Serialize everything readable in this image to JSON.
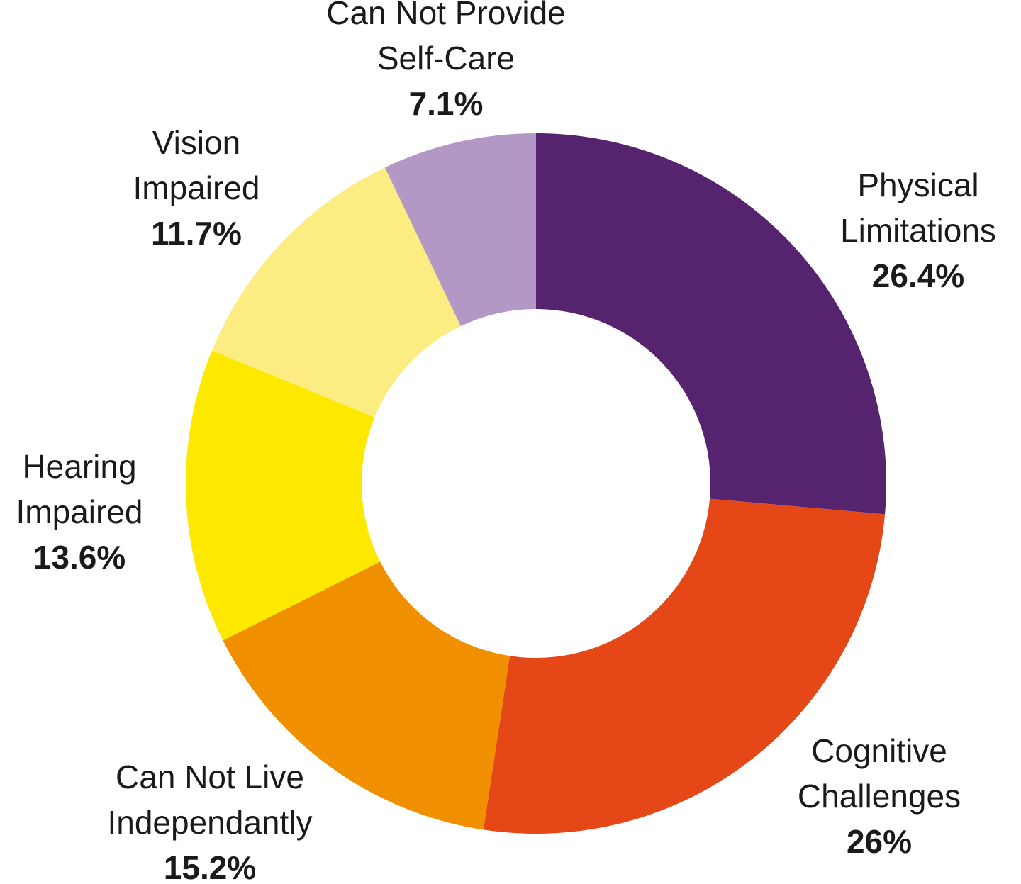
{
  "chart_data": {
    "type": "donut",
    "categories": [
      [
        "Physical",
        "Limitations"
      ],
      [
        "Cognitive",
        "Challenges"
      ],
      [
        "Can Not Live",
        "Independantly"
      ],
      [
        "Hearing",
        "Impaired"
      ],
      [
        "Vision",
        "Impaired"
      ],
      [
        "Can Not Provide",
        "Self-Care"
      ]
    ],
    "values": [
      26.4,
      26,
      15.2,
      13.6,
      11.7,
      7.1
    ],
    "value_labels": [
      "26.4%",
      "26%",
      "15.2%",
      "13.6%",
      "11.7%",
      "7.1%"
    ],
    "colors": [
      "#56236f",
      "#e54717",
      "#f09000",
      "#fde900",
      "#fbed82",
      "#b398c6"
    ]
  }
}
